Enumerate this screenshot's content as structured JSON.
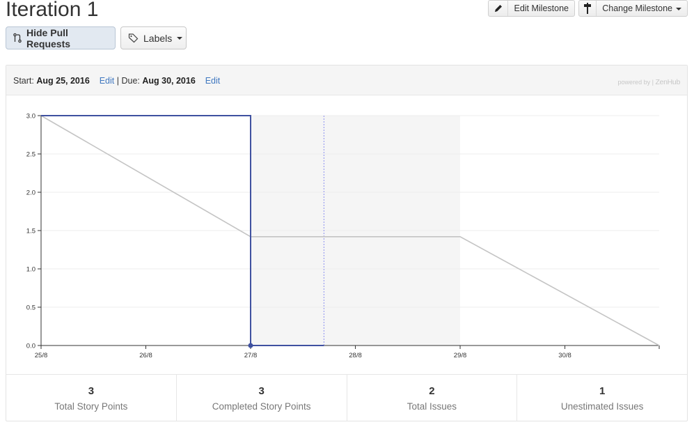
{
  "header": {
    "title": "Iteration 1",
    "edit_milestone_label": "Edit Milestone",
    "change_milestone_label": "Change Milestone",
    "hide_pull_requests_label": "Hide Pull Requests",
    "labels_label": "Labels"
  },
  "panel": {
    "start_label": "Start:",
    "start_date": "Aug 25, 2016",
    "edit_label": "Edit",
    "separator": "|",
    "due_label": "Due:",
    "due_date": "Aug 30, 2016",
    "powered_by": "powered by |",
    "brand": "ZenHub"
  },
  "chart_data": {
    "type": "line",
    "x_tick_labels": [
      "25/8",
      "26/8",
      "27/8",
      "28/8",
      "29/8",
      "30/8"
    ],
    "y_tick_labels": [
      "0.0",
      "0.5",
      "1.0",
      "1.5",
      "2.0",
      "2.5",
      "3.0"
    ],
    "ylim": [
      0,
      3
    ],
    "xlim_days": [
      0,
      5.9
    ],
    "grid": true,
    "series": [
      {
        "color": "#3f51a0",
        "points": [
          [
            0,
            3
          ],
          [
            2,
            3
          ],
          [
            2,
            0
          ],
          [
            2.7,
            0
          ]
        ],
        "end_marker_at_x": 2
      },
      {
        "color": "#c4c4c4",
        "points": [
          [
            0,
            3
          ],
          [
            2,
            1.42
          ],
          [
            4,
            1.42
          ],
          [
            5.9,
            0
          ]
        ]
      }
    ],
    "shaded_range": [
      2,
      4
    ],
    "shaded_color": "#f5f5f5",
    "today_line_x": 2.7,
    "today_line_color": "#8a8ff0"
  },
  "stats": [
    {
      "value": "3",
      "label": "Total Story Points"
    },
    {
      "value": "3",
      "label": "Completed Story Points"
    },
    {
      "value": "2",
      "label": "Total Issues"
    },
    {
      "value": "1",
      "label": "Unestimated Issues"
    }
  ]
}
